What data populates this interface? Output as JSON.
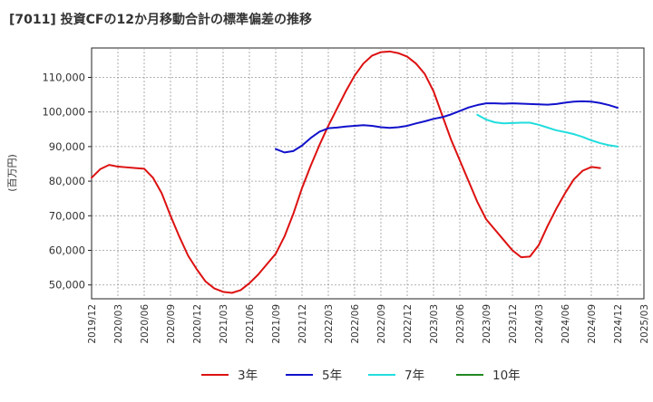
{
  "chart_data": {
    "type": "line",
    "title": "[7011]  投資CFの12か月移動合計の標準偏差の推移",
    "ylabel": "(百万円)",
    "xlabel": "",
    "ylim": [
      46000,
      118500
    ],
    "y_ticks": [
      50000,
      60000,
      70000,
      80000,
      90000,
      100000,
      110000
    ],
    "y_tick_labels": [
      "50,000",
      "60,000",
      "70,000",
      "80,000",
      "90,000",
      "100,000",
      "110,000"
    ],
    "x_range": [
      "2019-12",
      "2025-03"
    ],
    "x_tick_labels": [
      "2019/12",
      "2020/03",
      "2020/06",
      "2020/09",
      "2020/12",
      "2021/03",
      "2021/06",
      "2021/09",
      "2021/12",
      "2022/03",
      "2022/06",
      "2022/09",
      "2022/12",
      "2023/03",
      "2023/06",
      "2023/09",
      "2023/12",
      "2024/03",
      "2024/06",
      "2024/09",
      "2024/12",
      "2025/03"
    ],
    "grid": true,
    "legend_position": "bottom",
    "series": [
      {
        "name": "3年",
        "color": "#dd1111",
        "points": [
          [
            "2019-12",
            81000
          ],
          [
            "2020-01",
            83500
          ],
          [
            "2020-02",
            84700
          ],
          [
            "2020-03",
            84200
          ],
          [
            "2020-04",
            84000
          ],
          [
            "2020-05",
            83800
          ],
          [
            "2020-06",
            83600
          ],
          [
            "2020-07",
            81000
          ],
          [
            "2020-08",
            76500
          ],
          [
            "2020-09",
            70000
          ],
          [
            "2020-10",
            64000
          ],
          [
            "2020-11",
            58500
          ],
          [
            "2020-12",
            54500
          ],
          [
            "2021-01",
            51000
          ],
          [
            "2021-02",
            49000
          ],
          [
            "2021-03",
            48000
          ],
          [
            "2021-04",
            47700
          ],
          [
            "2021-05",
            48500
          ],
          [
            "2021-06",
            50500
          ],
          [
            "2021-07",
            53000
          ],
          [
            "2021-08",
            56000
          ],
          [
            "2021-09",
            59000
          ],
          [
            "2021-10",
            64000
          ],
          [
            "2021-11",
            70500
          ],
          [
            "2021-12",
            78000
          ],
          [
            "2022-01",
            84500
          ],
          [
            "2022-02",
            90500
          ],
          [
            "2022-03",
            96000
          ],
          [
            "2022-04",
            101000
          ],
          [
            "2022-05",
            106000
          ],
          [
            "2022-06",
            110500
          ],
          [
            "2022-07",
            114000
          ],
          [
            "2022-08",
            116300
          ],
          [
            "2022-09",
            117300
          ],
          [
            "2022-10",
            117500
          ],
          [
            "2022-11",
            117000
          ],
          [
            "2022-12",
            116000
          ],
          [
            "2023-01",
            114000
          ],
          [
            "2023-02",
            111000
          ],
          [
            "2023-03",
            106000
          ],
          [
            "2023-04",
            99000
          ],
          [
            "2023-05",
            92000
          ],
          [
            "2023-06",
            86000
          ],
          [
            "2023-07",
            80000
          ],
          [
            "2023-08",
            74000
          ],
          [
            "2023-09",
            69000
          ],
          [
            "2023-10",
            66000
          ],
          [
            "2023-11",
            63000
          ],
          [
            "2023-12",
            60000
          ],
          [
            "2024-01",
            58000
          ],
          [
            "2024-02",
            58200
          ],
          [
            "2024-03",
            61500
          ],
          [
            "2024-04",
            67000
          ],
          [
            "2024-05",
            72000
          ],
          [
            "2024-06",
            76500
          ],
          [
            "2024-07",
            80500
          ],
          [
            "2024-08",
            83000
          ],
          [
            "2024-09",
            84100
          ],
          [
            "2024-10",
            83800
          ]
        ]
      },
      {
        "name": "5年",
        "color": "#1111cc",
        "points": [
          [
            "2021-09",
            89300
          ],
          [
            "2021-10",
            88300
          ],
          [
            "2021-11",
            88700
          ],
          [
            "2021-12",
            90300
          ],
          [
            "2022-01",
            92500
          ],
          [
            "2022-02",
            94300
          ],
          [
            "2022-03",
            95300
          ],
          [
            "2022-04",
            95500
          ],
          [
            "2022-05",
            95800
          ],
          [
            "2022-06",
            96000
          ],
          [
            "2022-07",
            96200
          ],
          [
            "2022-08",
            96000
          ],
          [
            "2022-09",
            95600
          ],
          [
            "2022-10",
            95400
          ],
          [
            "2022-11",
            95600
          ],
          [
            "2022-12",
            96000
          ],
          [
            "2023-01",
            96700
          ],
          [
            "2023-02",
            97300
          ],
          [
            "2023-03",
            98000
          ],
          [
            "2023-04",
            98500
          ],
          [
            "2023-05",
            99300
          ],
          [
            "2023-06",
            100300
          ],
          [
            "2023-07",
            101300
          ],
          [
            "2023-08",
            102000
          ],
          [
            "2023-09",
            102500
          ],
          [
            "2023-10",
            102500
          ],
          [
            "2023-11",
            102400
          ],
          [
            "2023-12",
            102500
          ],
          [
            "2024-01",
            102400
          ],
          [
            "2024-02",
            102300
          ],
          [
            "2024-03",
            102200
          ],
          [
            "2024-04",
            102100
          ],
          [
            "2024-05",
            102300
          ],
          [
            "2024-06",
            102700
          ],
          [
            "2024-07",
            103000
          ],
          [
            "2024-08",
            103100
          ],
          [
            "2024-09",
            103000
          ],
          [
            "2024-10",
            102600
          ],
          [
            "2024-11",
            102000
          ],
          [
            "2024-12",
            101200
          ]
        ]
      },
      {
        "name": "7年",
        "color": "#22dddd",
        "points": [
          [
            "2023-08",
            99200
          ],
          [
            "2023-09",
            97800
          ],
          [
            "2023-10",
            97000
          ],
          [
            "2023-11",
            96700
          ],
          [
            "2023-12",
            96800
          ],
          [
            "2024-01",
            96900
          ],
          [
            "2024-02",
            96900
          ],
          [
            "2024-03",
            96300
          ],
          [
            "2024-04",
            95500
          ],
          [
            "2024-05",
            94700
          ],
          [
            "2024-06",
            94200
          ],
          [
            "2024-07",
            93600
          ],
          [
            "2024-08",
            92800
          ],
          [
            "2024-09",
            91800
          ],
          [
            "2024-10",
            91000
          ],
          [
            "2024-11",
            90400
          ],
          [
            "2024-12",
            90000
          ]
        ]
      },
      {
        "name": "10年",
        "color": "#228822",
        "points": []
      }
    ]
  }
}
